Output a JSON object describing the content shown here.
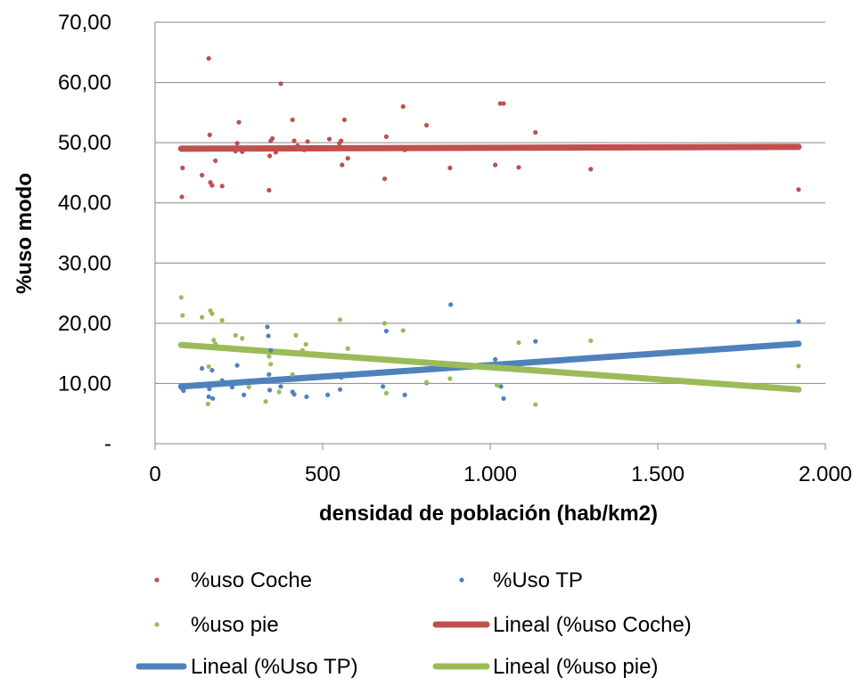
{
  "chart_data": {
    "type": "scatter",
    "title": "",
    "xlabel": "densidad de población (hab/km2)",
    "ylabel": "%uso modo",
    "xlim": [
      0,
      2000
    ],
    "ylim": [
      0,
      70
    ],
    "x_ticks": [
      {
        "value": 0,
        "label": "0"
      },
      {
        "value": 500,
        "label": "500"
      },
      {
        "value": 1000,
        "label": "1.000"
      },
      {
        "value": 1500,
        "label": "1.500"
      },
      {
        "value": 2000,
        "label": "2.000"
      }
    ],
    "y_ticks": [
      {
        "value": 0,
        "label": "-"
      },
      {
        "value": 10,
        "label": "10,00"
      },
      {
        "value": 20,
        "label": "20,00"
      },
      {
        "value": 30,
        "label": "30,00"
      },
      {
        "value": 40,
        "label": "40,00"
      },
      {
        "value": 50,
        "label": "50,00"
      },
      {
        "value": 60,
        "label": "60,00"
      },
      {
        "value": 70,
        "label": "70,00"
      }
    ],
    "grid": "horizontal",
    "legend_position": "bottom",
    "series": [
      {
        "name": "%uso Coche",
        "kind": "scatter",
        "color": "#C0504D",
        "points": [
          [
            80,
            41.0
          ],
          [
            82,
            45.8
          ],
          [
            140,
            44.6
          ],
          [
            160,
            64.0
          ],
          [
            163,
            51.3
          ],
          [
            165,
            43.4
          ],
          [
            170,
            42.9
          ],
          [
            180,
            47.0
          ],
          [
            200,
            42.8
          ],
          [
            240,
            48.6
          ],
          [
            245,
            49.9
          ],
          [
            250,
            53.4
          ],
          [
            260,
            48.5
          ],
          [
            340,
            42.1
          ],
          [
            342,
            47.8
          ],
          [
            345,
            50.3
          ],
          [
            350,
            50.7
          ],
          [
            360,
            48.4
          ],
          [
            375,
            59.8
          ],
          [
            410,
            53.8
          ],
          [
            415,
            50.3
          ],
          [
            425,
            49.5
          ],
          [
            445,
            48.8
          ],
          [
            455,
            50.2
          ],
          [
            520,
            50.6
          ],
          [
            550,
            49.9
          ],
          [
            555,
            50.3
          ],
          [
            558,
            46.3
          ],
          [
            565,
            53.8
          ],
          [
            575,
            47.4
          ],
          [
            685,
            44.0
          ],
          [
            690,
            51.0
          ],
          [
            740,
            56.0
          ],
          [
            745,
            48.8
          ],
          [
            810,
            52.9
          ],
          [
            880,
            45.8
          ],
          [
            1015,
            46.3
          ],
          [
            1030,
            56.5
          ],
          [
            1040,
            56.5
          ],
          [
            1085,
            45.9
          ],
          [
            1135,
            51.7
          ],
          [
            1300,
            45.6
          ],
          [
            1920,
            42.2
          ]
        ]
      },
      {
        "name": "%Uso TP",
        "kind": "scatter",
        "color": "#4F81BD",
        "points": [
          [
            80,
            9.2
          ],
          [
            85,
            8.8
          ],
          [
            140,
            12.5
          ],
          [
            160,
            7.8
          ],
          [
            162,
            9.1
          ],
          [
            170,
            12.2
          ],
          [
            172,
            7.5
          ],
          [
            180,
            9.8
          ],
          [
            200,
            10.5
          ],
          [
            230,
            9.4
          ],
          [
            245,
            13.0
          ],
          [
            265,
            8.1
          ],
          [
            335,
            19.4
          ],
          [
            338,
            17.9
          ],
          [
            340,
            11.5
          ],
          [
            342,
            8.9
          ],
          [
            345,
            15.5
          ],
          [
            375,
            9.5
          ],
          [
            405,
            10.8
          ],
          [
            410,
            8.6
          ],
          [
            415,
            8.2
          ],
          [
            440,
            11.0
          ],
          [
            452,
            7.8
          ],
          [
            515,
            8.1
          ],
          [
            552,
            9.0
          ],
          [
            556,
            11.0
          ],
          [
            680,
            9.5
          ],
          [
            690,
            18.7
          ],
          [
            745,
            8.1
          ],
          [
            810,
            10.1
          ],
          [
            882,
            23.1
          ],
          [
            1015,
            14.0
          ],
          [
            1032,
            9.5
          ],
          [
            1040,
            7.5
          ],
          [
            1135,
            17.0
          ],
          [
            1920,
            20.3
          ]
        ]
      },
      {
        "name": "%uso pie",
        "kind": "scatter",
        "color": "#9BBB59",
        "points": [
          [
            78,
            24.3
          ],
          [
            82,
            21.3
          ],
          [
            140,
            21.0
          ],
          [
            158,
            6.6
          ],
          [
            160,
            12.8
          ],
          [
            165,
            22.1
          ],
          [
            170,
            21.6
          ],
          [
            175,
            17.2
          ],
          [
            180,
            16.6
          ],
          [
            200,
            20.5
          ],
          [
            240,
            18.0
          ],
          [
            260,
            17.5
          ],
          [
            280,
            9.4
          ],
          [
            330,
            7.0
          ],
          [
            340,
            14.5
          ],
          [
            345,
            13.2
          ],
          [
            370,
            8.6
          ],
          [
            410,
            11.5
          ],
          [
            420,
            18.0
          ],
          [
            440,
            15.5
          ],
          [
            450,
            16.5
          ],
          [
            552,
            20.6
          ],
          [
            558,
            14.4
          ],
          [
            575,
            15.8
          ],
          [
            685,
            20.0
          ],
          [
            690,
            8.4
          ],
          [
            740,
            18.8
          ],
          [
            810,
            10.2
          ],
          [
            880,
            10.8
          ],
          [
            1020,
            9.7
          ],
          [
            1085,
            16.8
          ],
          [
            1135,
            6.5
          ],
          [
            1300,
            17.1
          ],
          [
            1920,
            12.9
          ]
        ]
      },
      {
        "name": "Lineal (%uso Coche)",
        "kind": "trendline",
        "color": "#C0504D",
        "points": [
          [
            78,
            49.0
          ],
          [
            1920,
            49.3
          ]
        ]
      },
      {
        "name": "Lineal (%Uso TP)",
        "kind": "trendline",
        "color": "#4F81BD",
        "points": [
          [
            78,
            9.5
          ],
          [
            1920,
            16.6
          ]
        ]
      },
      {
        "name": "Lineal (%uso pie)",
        "kind": "trendline",
        "color": "#9BBB59",
        "points": [
          [
            78,
            16.4
          ],
          [
            1920,
            9.0
          ]
        ]
      }
    ]
  }
}
